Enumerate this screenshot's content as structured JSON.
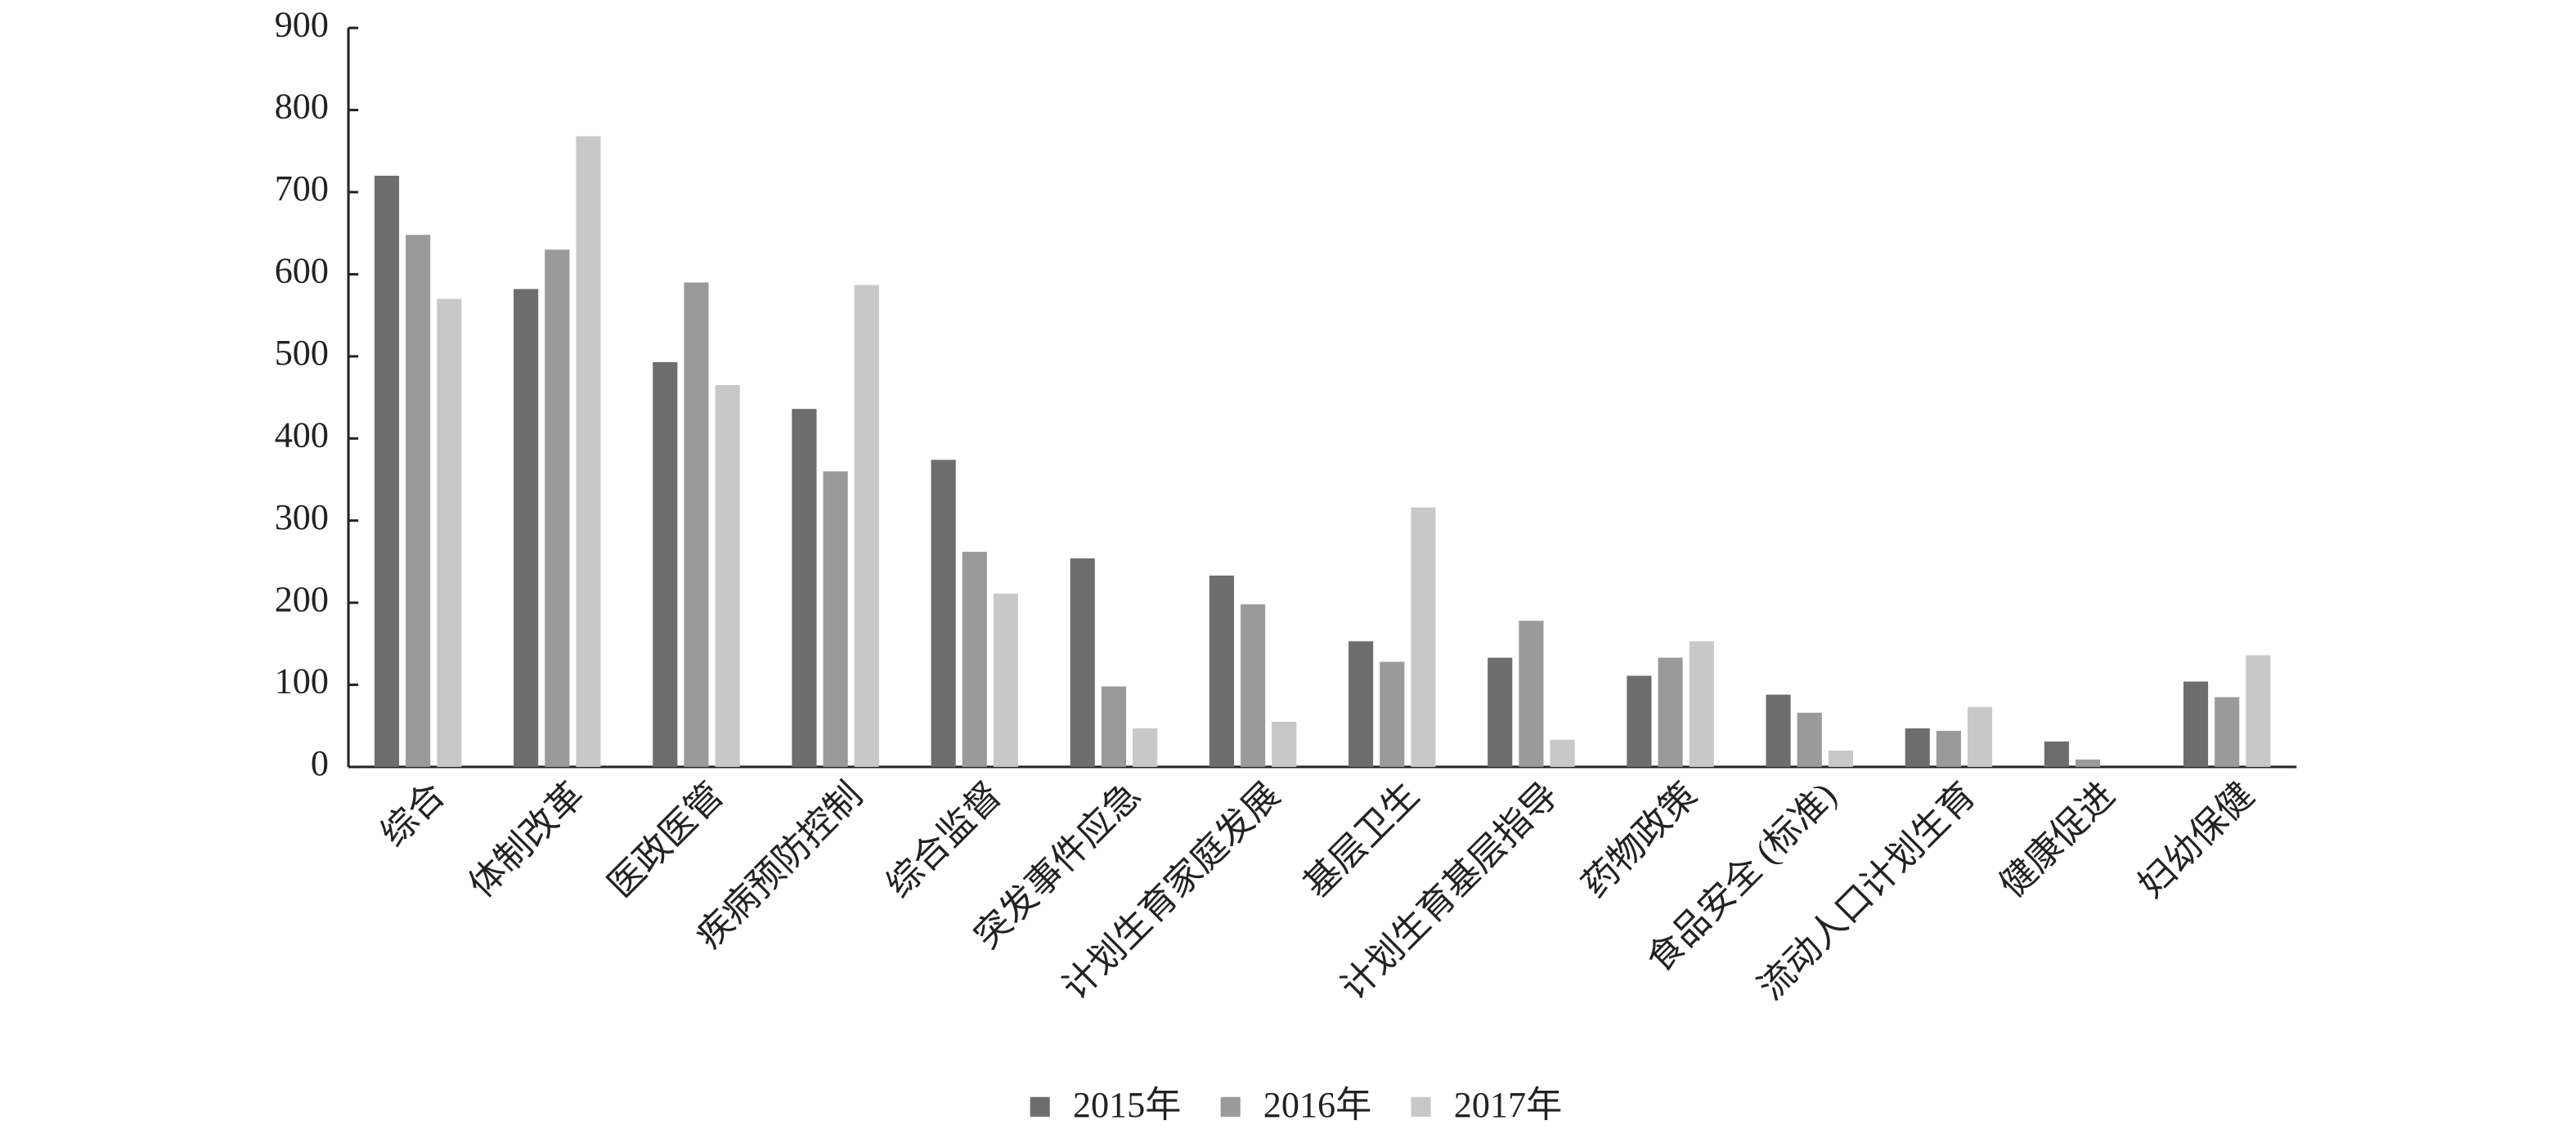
{
  "chart_data": {
    "type": "bar",
    "categories": [
      "综合",
      "体制改革",
      "医政医管",
      "疾病预防控制",
      "综合监督",
      "突发事件应急",
      "计划生育家庭发展",
      "基层卫生",
      "计划生育基层指导",
      "药物政策",
      "食品安全 (标准)",
      "流动人口计划生育",
      "健康促进",
      "妇幼保健"
    ],
    "series": [
      {
        "name": "2015年",
        "color": "#6d6d6d",
        "values": [
          720,
          582,
          493,
          436,
          374,
          254,
          233,
          153,
          133,
          111,
          88,
          47,
          31,
          104
        ]
      },
      {
        "name": "2016年",
        "color": "#9a9a9a",
        "values": [
          648,
          630,
          590,
          360,
          262,
          98,
          198,
          128,
          178,
          133,
          66,
          44,
          9,
          85
        ]
      },
      {
        "name": "2017年",
        "color": "#c8c8c8",
        "values": [
          570,
          768,
          465,
          587,
          211,
          47,
          55,
          316,
          33,
          153,
          20,
          73,
          0,
          136
        ]
      }
    ],
    "ylim": [
      0,
      900
    ],
    "yticks": [
      0,
      100,
      200,
      300,
      400,
      500,
      600,
      700,
      800,
      900
    ],
    "legend": "bottom"
  }
}
